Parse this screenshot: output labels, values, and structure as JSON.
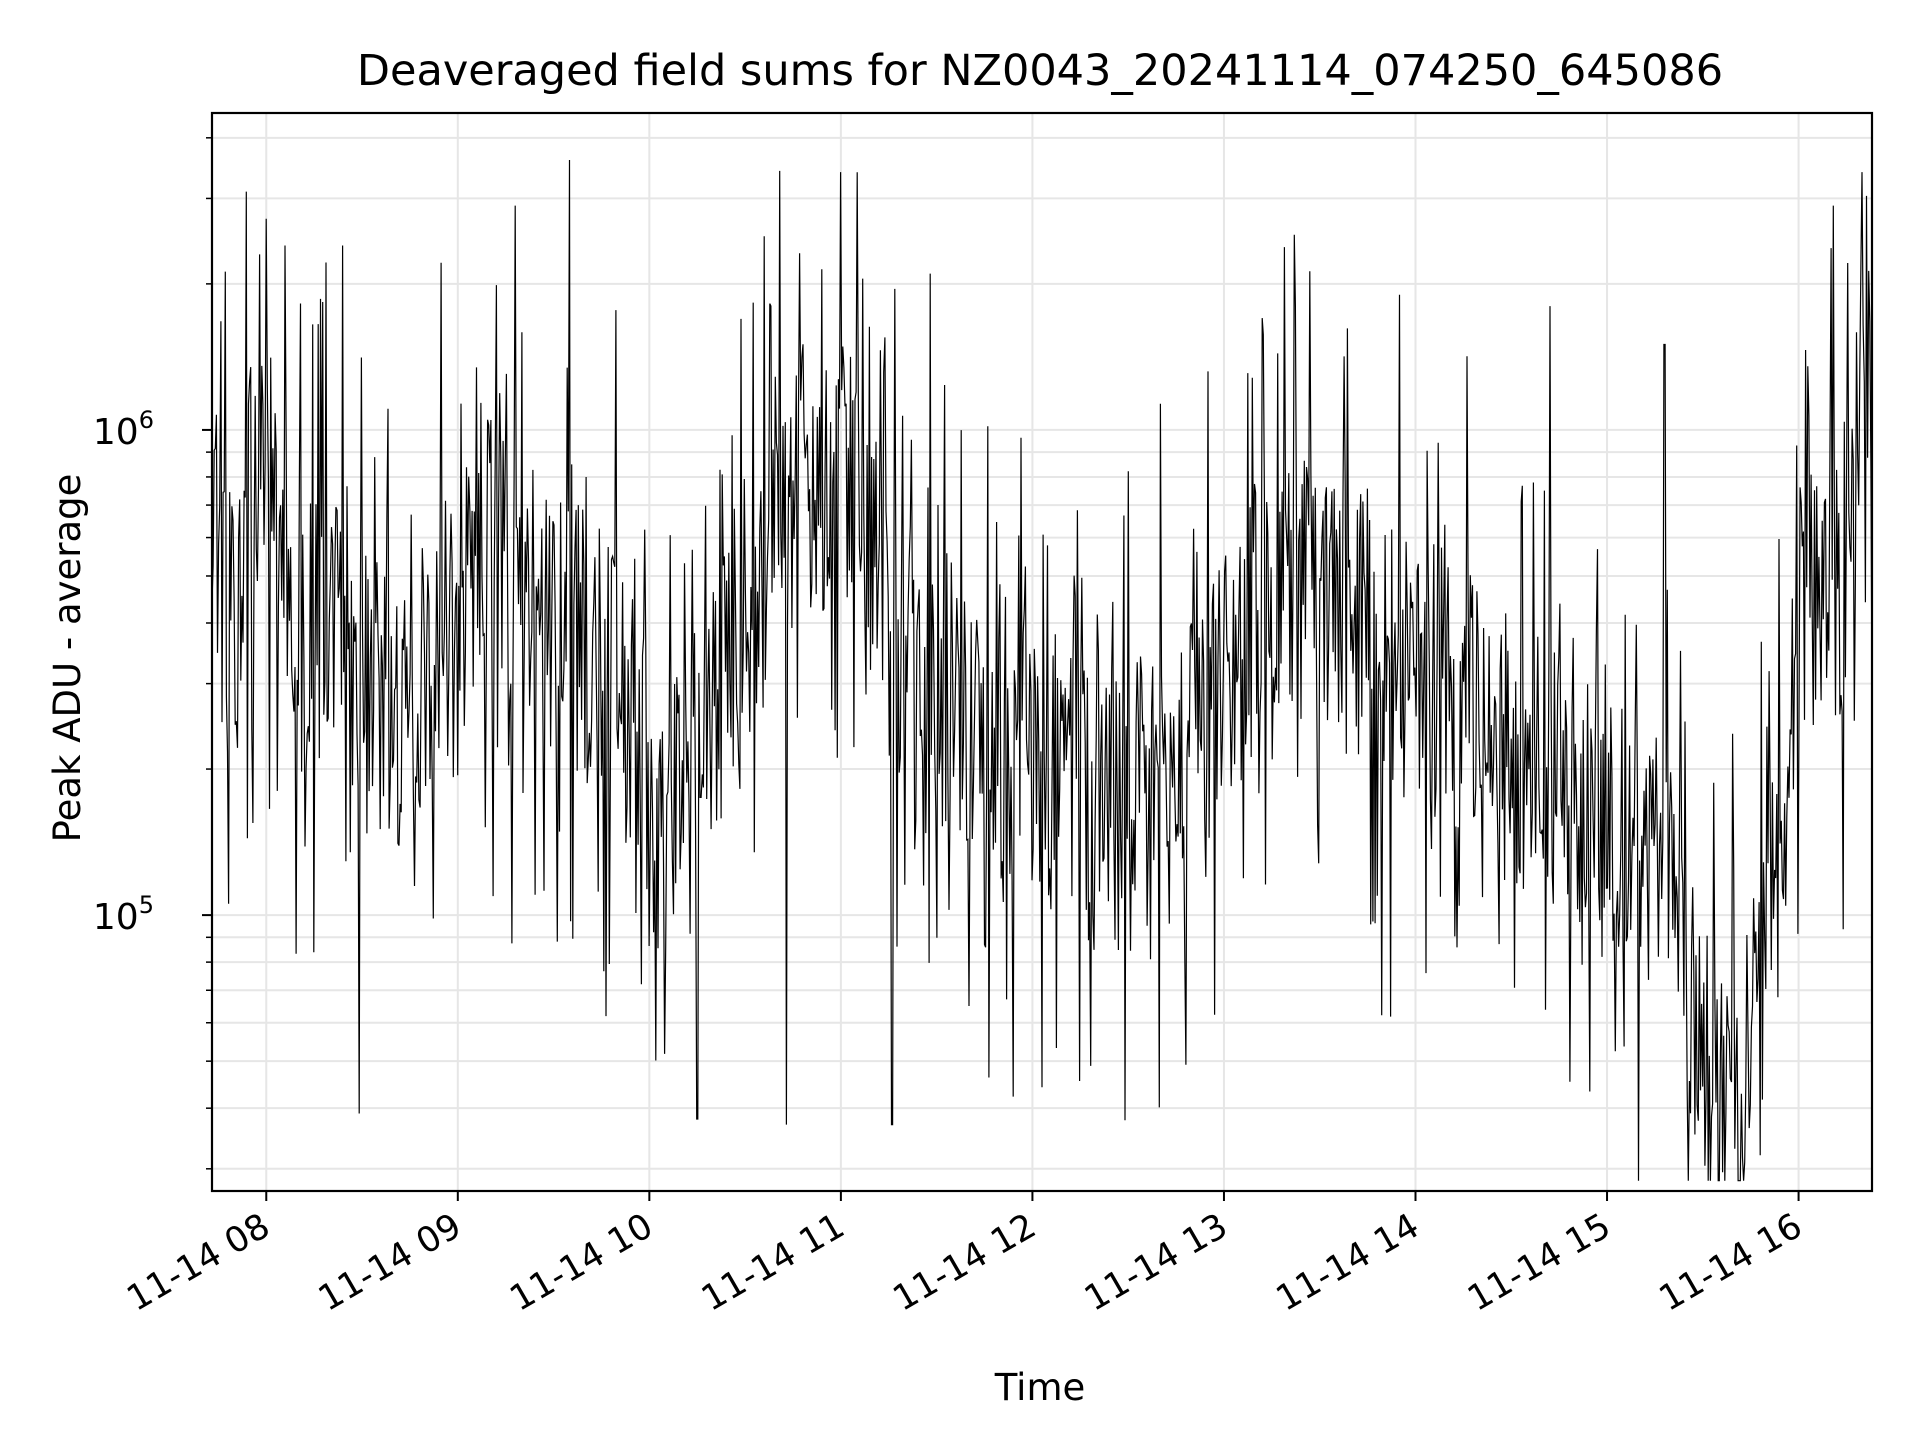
{
  "chart_data": {
    "type": "line",
    "title": "Deaveraged field sums for NZ0043_20241114_074250_645086",
    "xlabel": "Time",
    "ylabel": "Peak ADU - average",
    "yscale": "log",
    "ylim": [
      27000,
      4500000
    ],
    "xlim": [
      "2024-11-14 07:43",
      "2024-11-14 16:23"
    ],
    "grid": true,
    "legend": "none",
    "series_color": "#000000",
    "x_ticks": [
      "11-14 08",
      "11-14 09",
      "11-14 10",
      "11-14 11",
      "11-14 12",
      "11-14 13",
      "11-14 14",
      "11-14 15",
      "11-14 16"
    ],
    "y_ticks": [
      {
        "base": "10",
        "exp": "5",
        "value": 100000
      },
      {
        "base": "10",
        "exp": "6",
        "value": 1000000
      }
    ],
    "series": [
      {
        "x": [
          "2024-11-14 07:43",
          "2024-11-14 07:45",
          "2024-11-14 07:48",
          "2024-11-14 07:52",
          "2024-11-14 07:58",
          "2024-11-14 08:05",
          "2024-11-14 08:12",
          "2024-11-14 08:20",
          "2024-11-14 08:30",
          "2024-11-14 08:40",
          "2024-11-14 08:50",
          "2024-11-14 09:00",
          "2024-11-14 09:08",
          "2024-11-14 09:16",
          "2024-11-14 09:25",
          "2024-11-14 09:35",
          "2024-11-14 09:45",
          "2024-11-14 09:55",
          "2024-11-14 10:02",
          "2024-11-14 10:10",
          "2024-11-14 10:20",
          "2024-11-14 10:30",
          "2024-11-14 10:40",
          "2024-11-14 10:48",
          "2024-11-14 10:55",
          "2024-11-14 11:00",
          "2024-11-14 11:05",
          "2024-11-14 11:12",
          "2024-11-14 11:20",
          "2024-11-14 11:30",
          "2024-11-14 11:40",
          "2024-11-14 11:50",
          "2024-11-14 12:00",
          "2024-11-14 12:10",
          "2024-11-14 12:20",
          "2024-11-14 12:30",
          "2024-11-14 12:40",
          "2024-11-14 12:50",
          "2024-11-14 13:00",
          "2024-11-14 13:10",
          "2024-11-14 13:20",
          "2024-11-14 13:30",
          "2024-11-14 13:40",
          "2024-11-14 13:50",
          "2024-11-14 14:00",
          "2024-11-14 14:10",
          "2024-11-14 14:20",
          "2024-11-14 14:30",
          "2024-11-14 14:40",
          "2024-11-14 14:50",
          "2024-11-14 15:00",
          "2024-11-14 15:10",
          "2024-11-14 15:20",
          "2024-11-14 15:30",
          "2024-11-14 15:37",
          "2024-11-14 15:43",
          "2024-11-14 15:48",
          "2024-11-14 15:55",
          "2024-11-14 16:00",
          "2024-11-14 16:08",
          "2024-11-14 16:15",
          "2024-11-14 16:20",
          "2024-11-14 16:23"
        ],
        "y": [
          750000,
          450000,
          420000,
          500000,
          1000000,
          600000,
          400000,
          450000,
          300000,
          250000,
          300000,
          400000,
          600000,
          500000,
          450000,
          400000,
          350000,
          250000,
          150000,
          180000,
          250000,
          400000,
          600000,
          800000,
          700000,
          800000,
          900000,
          400000,
          300000,
          250000,
          250000,
          200000,
          200000,
          200000,
          180000,
          180000,
          200000,
          220000,
          300000,
          400000,
          500000,
          450000,
          400000,
          350000,
          300000,
          300000,
          250000,
          220000,
          200000,
          180000,
          160000,
          140000,
          120000,
          50000,
          45000,
          50000,
          70000,
          150000,
          400000,
          500000,
          400000,
          1000000,
          1500000
        ],
        "peaks": [
          {
            "x": "2024-11-14 07:58",
            "y": 2300000
          },
          {
            "x": "2024-11-14 08:06",
            "y": 2400000
          },
          {
            "x": "2024-11-14 08:24",
            "y": 2400000
          },
          {
            "x": "2024-11-14 09:18",
            "y": 2900000
          },
          {
            "x": "2024-11-14 09:35",
            "y": 3600000
          },
          {
            "x": "2024-11-14 11:00",
            "y": 3400000
          },
          {
            "x": "2024-11-14 11:28",
            "y": 2100000
          },
          {
            "x": "2024-11-14 13:12",
            "y": 1700000
          },
          {
            "x": "2024-11-14 13:55",
            "y": 1900000
          },
          {
            "x": "2024-11-14 14:42",
            "y": 1800000
          },
          {
            "x": "2024-11-14 15:18",
            "y": 1500000
          },
          {
            "x": "2024-11-14 16:11",
            "y": 2900000
          },
          {
            "x": "2024-11-14 16:20",
            "y": 3400000
          }
        ],
        "troughs": [
          {
            "x": "2024-11-14 08:29",
            "y": 39000
          },
          {
            "x": "2024-11-14 10:15",
            "y": 38000
          },
          {
            "x": "2024-11-14 10:43",
            "y": 37000
          },
          {
            "x": "2024-11-14 11:16",
            "y": 37000
          },
          {
            "x": "2024-11-14 15:40",
            "y": 33000
          },
          {
            "x": "2024-11-14 15:48",
            "y": 32000
          }
        ]
      }
    ]
  }
}
